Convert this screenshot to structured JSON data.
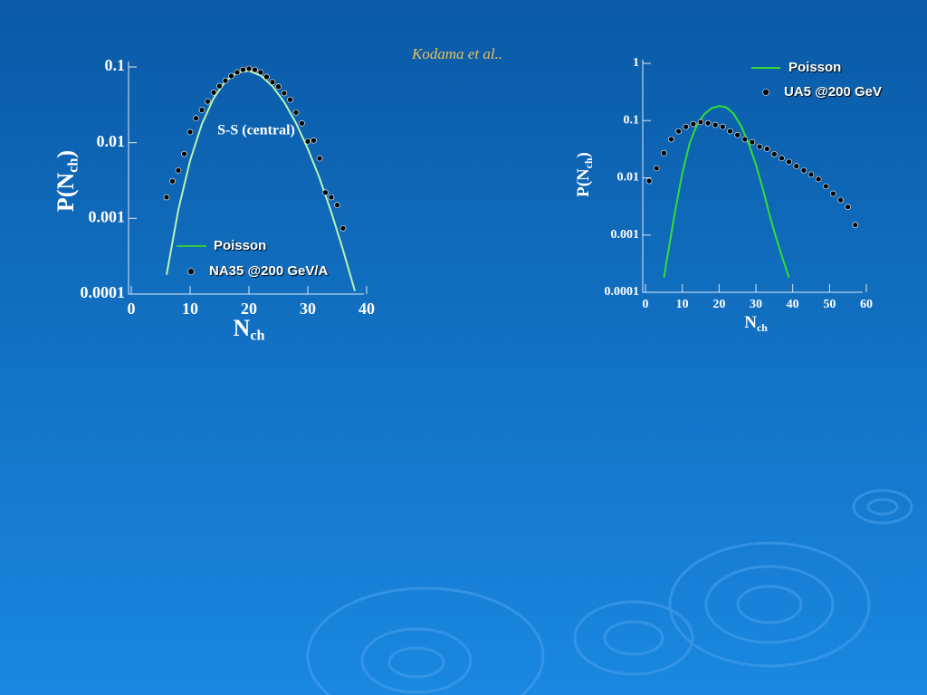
{
  "caption": "Kodama et al..",
  "chart_data": [
    {
      "type": "line",
      "annotation": "S-S (central)",
      "xlabel": [
        "N",
        "ch"
      ],
      "ylabel": [
        "P(N",
        "ch",
        ")"
      ],
      "log_y": true,
      "xlim": [
        0,
        40
      ],
      "ylim": [
        0.0001,
        0.1
      ],
      "xticks": [
        0,
        10,
        20,
        30,
        40
      ],
      "yticks": [
        0.0001,
        0.001,
        0.01,
        0.1
      ],
      "legend": "lower center",
      "series": [
        {
          "name": "Poisson",
          "type": "line",
          "color": "#b8f5b0",
          "x": [
            6,
            8,
            10,
            12,
            14,
            16,
            18,
            20,
            22,
            24,
            26,
            28,
            30,
            32,
            34,
            36,
            38
          ],
          "values": [
            0.00018,
            0.0013,
            0.0058,
            0.0176,
            0.0387,
            0.0646,
            0.0844,
            0.0888,
            0.0769,
            0.0557,
            0.0343,
            0.0181,
            0.0083,
            0.0034,
            0.0012,
            0.00038,
            0.00011
          ]
        },
        {
          "name": "NA35 @200 GeV/A",
          "type": "scatter",
          "color": "#000000",
          "x": [
            6,
            7,
            8,
            9,
            10,
            11,
            12,
            13,
            14,
            15,
            16,
            17,
            18,
            19,
            20,
            21,
            22,
            23,
            24,
            25,
            26,
            27,
            28,
            29,
            30,
            31,
            32,
            33,
            34,
            35,
            36
          ],
          "values": [
            0.0019,
            0.0031,
            0.0043,
            0.0071,
            0.0138,
            0.021,
            0.027,
            0.035,
            0.046,
            0.056,
            0.066,
            0.076,
            0.085,
            0.092,
            0.095,
            0.092,
            0.085,
            0.074,
            0.063,
            0.055,
            0.045,
            0.037,
            0.025,
            0.018,
            0.0104,
            0.0107,
            0.0062,
            0.0022,
            0.0019,
            0.0015,
            0.00074
          ]
        }
      ]
    },
    {
      "type": "line",
      "xlabel": [
        "N",
        "ch"
      ],
      "ylabel": [
        "P(N",
        "ch",
        ")"
      ],
      "log_y": true,
      "xlim": [
        0,
        60
      ],
      "ylim": [
        0.0001,
        1
      ],
      "xticks": [
        0,
        10,
        20,
        30,
        40,
        50,
        60
      ],
      "yticks": [
        0.0001,
        0.001,
        0.01,
        0.1,
        1
      ],
      "legend": "upper right",
      "series": [
        {
          "name": "Poisson",
          "type": "line",
          "color": "#33dd33",
          "x": [
            5,
            8,
            10,
            12,
            14,
            16,
            18,
            20,
            22,
            24,
            26,
            28,
            30,
            32,
            34,
            36,
            38,
            39
          ],
          "values": [
            0.00018,
            0.0025,
            0.012,
            0.04,
            0.085,
            0.13,
            0.165,
            0.18,
            0.17,
            0.13,
            0.08,
            0.04,
            0.017,
            0.006,
            0.0019,
            0.0007,
            0.00028,
            0.00018
          ]
        },
        {
          "name": "UA5 @200 GeV",
          "type": "scatter",
          "color": "#000000",
          "x": [
            1,
            3,
            5,
            7,
            9,
            11,
            13,
            15,
            17,
            19,
            21,
            23,
            25,
            27,
            29,
            31,
            33,
            35,
            37,
            39,
            41,
            43,
            45,
            47,
            49,
            51,
            53,
            55,
            57
          ],
          "values": [
            0.0088,
            0.0147,
            0.027,
            0.047,
            0.065,
            0.078,
            0.087,
            0.094,
            0.09,
            0.084,
            0.078,
            0.065,
            0.056,
            0.047,
            0.042,
            0.035,
            0.032,
            0.026,
            0.022,
            0.019,
            0.016,
            0.0135,
            0.0114,
            0.0095,
            0.0071,
            0.0053,
            0.0041,
            0.0031,
            0.0015
          ]
        }
      ]
    }
  ]
}
